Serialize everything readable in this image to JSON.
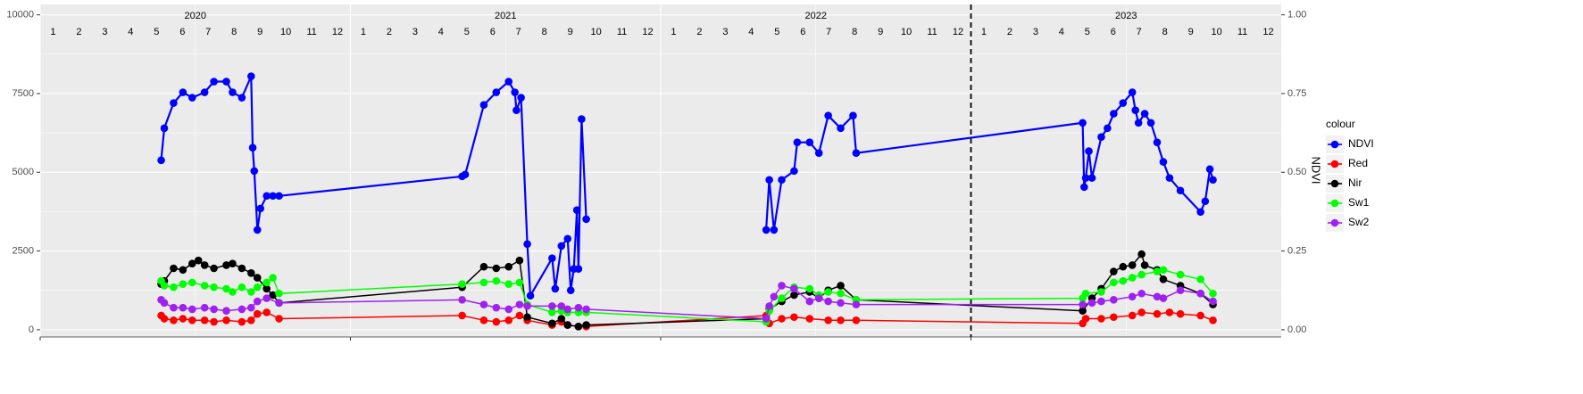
{
  "chart_data": {
    "type": "line",
    "right_axis_title": "NDVI",
    "legend_title": "colour",
    "legend_position": "right",
    "grid": true,
    "years": [
      2020,
      2021,
      2022,
      2023
    ],
    "months": [
      1,
      2,
      3,
      4,
      5,
      6,
      7,
      8,
      9,
      10,
      11,
      12
    ],
    "vline": 2023,
    "xlim": [
      2020,
      2024
    ],
    "ylim": [
      -230,
      10330
    ],
    "yticks": [
      0,
      2500,
      5000,
      7500,
      10000
    ],
    "y2lim": [
      -0.023,
      1.033
    ],
    "y2ticks": [
      {
        "value": 0,
        "label": "0.00"
      },
      {
        "value": 0.25,
        "label": "0.25"
      },
      {
        "value": 0.5,
        "label": "0.50"
      },
      {
        "value": 0.75,
        "label": "0.75"
      },
      {
        "value": 1,
        "label": "1.00"
      }
    ],
    "series": [
      {
        "name": "NDVI",
        "color": "#0000ff",
        "axis": "y2",
        "x": [
          2020.39,
          2020.4,
          2020.43,
          2020.46,
          2020.49,
          2020.53,
          2020.56,
          2020.6,
          2020.62,
          2020.65,
          2020.68,
          2020.685,
          2020.69,
          2020.7,
          2020.71,
          2020.73,
          2020.75,
          2020.77,
          2021.36,
          2021.37,
          2021.43,
          2021.47,
          2021.51,
          2021.53,
          2021.535,
          2021.55,
          2021.57,
          2021.58,
          2021.65,
          2021.66,
          2021.68,
          2021.7,
          2021.71,
          2021.72,
          2021.73,
          2021.735,
          2021.745,
          2021.76,
          2022.0,
          2022.34,
          2022.35,
          2022.365,
          2022.39,
          2022.43,
          2022.44,
          2022.48,
          2022.51,
          2022.54,
          2022.58,
          2022.62,
          2022.63,
          2023.36,
          2023.365,
          2023.37,
          2023.38,
          2023.39,
          2023.42,
          2023.44,
          2023.46,
          2023.49,
          2023.52,
          2023.53,
          2023.54,
          2023.56,
          2023.58,
          2023.6,
          2023.62,
          2023.64,
          2023.675,
          2023.74,
          2023.755,
          2023.77,
          2023.78
        ],
        "values": [
          0.538,
          0.64,
          0.72,
          0.754,
          0.737,
          0.754,
          0.788,
          0.788,
          0.754,
          0.737,
          0.805,
          0.578,
          0.504,
          0.317,
          0.385,
          0.425,
          0.425,
          0.425,
          0.487,
          0.493,
          0.714,
          0.754,
          0.788,
          0.754,
          0.697,
          0.737,
          0.272,
          0.108,
          0.227,
          0.13,
          0.266,
          0.289,
          0.125,
          0.193,
          0.38,
          0.193,
          0.669,
          0.351,
          null,
          0.317,
          0.476,
          0.317,
          0.476,
          0.504,
          0.595,
          0.595,
          0.561,
          0.68,
          0.64,
          0.68,
          0.561,
          0.657,
          0.453,
          0.482,
          0.567,
          0.482,
          0.612,
          0.64,
          0.686,
          0.72,
          0.754,
          0.697,
          0.657,
          0.686,
          0.657,
          0.595,
          0.533,
          0.482,
          0.442,
          0.374,
          0.408,
          0.51,
          0.476
        ]
      },
      {
        "name": "Red",
        "color": "#ff0000",
        "x": [
          2020.39,
          2020.4,
          2020.43,
          2020.46,
          2020.49,
          2020.53,
          2020.56,
          2020.6,
          2020.65,
          2020.68,
          2020.7,
          2020.73,
          2020.77,
          2021.36,
          2021.43,
          2021.47,
          2021.51,
          2021.545,
          2021.57,
          2021.65,
          2021.68,
          2021.7,
          2021.735,
          2021.76,
          2022.34,
          2022.35,
          2022.39,
          2022.43,
          2022.48,
          2022.54,
          2022.58,
          2022.63,
          2023.36,
          2023.37,
          2023.42,
          2023.46,
          2023.52,
          2023.55,
          2023.6,
          2023.64,
          2023.675,
          2023.74,
          2023.78
        ],
        "values": [
          450,
          350,
          300,
          350,
          300,
          300,
          250,
          300,
          250,
          300,
          500,
          550,
          350,
          450,
          300,
          250,
          300,
          450,
          300,
          150,
          250,
          150,
          100,
          100,
          450,
          200,
          350,
          400,
          350,
          300,
          300,
          300,
          200,
          350,
          350,
          400,
          450,
          550,
          500,
          550,
          500,
          450,
          300
        ]
      },
      {
        "name": "Nir",
        "color": "#000000",
        "x": [
          2020.39,
          2020.4,
          2020.43,
          2020.46,
          2020.49,
          2020.51,
          2020.53,
          2020.56,
          2020.6,
          2020.62,
          2020.65,
          2020.68,
          2020.7,
          2020.73,
          2020.75,
          2020.77,
          2021.36,
          2021.43,
          2021.47,
          2021.51,
          2021.545,
          2021.57,
          2021.65,
          2021.68,
          2021.7,
          2021.735,
          2021.76,
          2022.34,
          2022.35,
          2022.39,
          2022.43,
          2022.48,
          2022.51,
          2022.54,
          2022.58,
          2022.63,
          2023.36,
          2023.39,
          2023.42,
          2023.46,
          2023.49,
          2023.52,
          2023.55,
          2023.56,
          2023.6,
          2023.62,
          2023.675,
          2023.74,
          2023.78
        ],
        "values": [
          1450,
          1550,
          1950,
          1900,
          2100,
          2200,
          2050,
          1950,
          2050,
          2100,
          1950,
          1800,
          1650,
          1300,
          1100,
          850,
          1350,
          2000,
          1950,
          2000,
          2200,
          400,
          200,
          350,
          150,
          100,
          150,
          350,
          650,
          900,
          1100,
          1200,
          1000,
          1250,
          1400,
          950,
          600,
          1000,
          1300,
          1850,
          2000,
          2050,
          2400,
          2050,
          1900,
          1600,
          1400,
          1150,
          800
        ]
      },
      {
        "name": "Sw1",
        "color": "#00ff00",
        "x": [
          2020.39,
          2020.4,
          2020.43,
          2020.46,
          2020.49,
          2020.53,
          2020.56,
          2020.6,
          2020.62,
          2020.65,
          2020.68,
          2020.7,
          2020.73,
          2020.75,
          2020.77,
          2021.36,
          2021.43,
          2021.47,
          2021.51,
          2021.545,
          2021.57,
          2021.65,
          2021.68,
          2021.7,
          2021.735,
          2021.76,
          2022.34,
          2022.35,
          2022.39,
          2022.43,
          2022.48,
          2022.51,
          2022.54,
          2022.58,
          2022.63,
          2023.36,
          2023.37,
          2023.42,
          2023.46,
          2023.49,
          2023.52,
          2023.55,
          2023.6,
          2023.62,
          2023.675,
          2023.74,
          2023.78
        ],
        "values": [
          1550,
          1400,
          1350,
          1450,
          1500,
          1400,
          1350,
          1300,
          1200,
          1350,
          1200,
          1350,
          1500,
          1650,
          1150,
          1450,
          1500,
          1550,
          1450,
          1500,
          800,
          550,
          600,
          550,
          550,
          550,
          250,
          600,
          1000,
          1350,
          1300,
          1100,
          1200,
          1150,
          950,
          1000,
          1150,
          1200,
          1500,
          1550,
          1650,
          1750,
          1850,
          1900,
          1750,
          1600,
          1150
        ]
      },
      {
        "name": "Sw2",
        "color": "#a020f0",
        "x": [
          2020.39,
          2020.4,
          2020.43,
          2020.46,
          2020.49,
          2020.53,
          2020.56,
          2020.6,
          2020.65,
          2020.68,
          2020.7,
          2020.73,
          2020.77,
          2021.36,
          2021.43,
          2021.47,
          2021.51,
          2021.545,
          2021.57,
          2021.65,
          2021.68,
          2021.7,
          2021.735,
          2021.76,
          2022.34,
          2022.35,
          2022.365,
          2022.39,
          2022.43,
          2022.48,
          2022.51,
          2022.54,
          2022.58,
          2022.63,
          2023.36,
          2023.39,
          2023.42,
          2023.46,
          2023.52,
          2023.55,
          2023.6,
          2023.62,
          2023.675,
          2023.74,
          2023.78
        ],
        "values": [
          950,
          850,
          700,
          700,
          650,
          700,
          650,
          600,
          650,
          700,
          900,
          1000,
          850,
          950,
          800,
          700,
          650,
          800,
          750,
          750,
          750,
          650,
          700,
          650,
          350,
          750,
          1050,
          1400,
          1300,
          900,
          1000,
          900,
          850,
          800,
          800,
          850,
          900,
          950,
          1050,
          1150,
          1050,
          1000,
          1250,
          1150,
          900
        ]
      }
    ]
  }
}
